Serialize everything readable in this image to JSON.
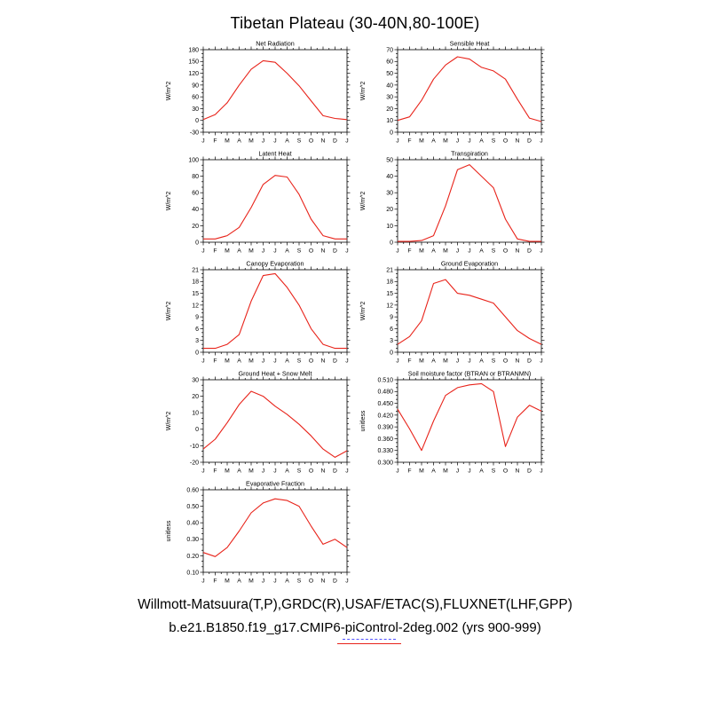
{
  "page_title": "Tibetan Plateau (30-40N,80-100E)",
  "line_color": "#e8231a",
  "footer": {
    "line1": "Willmott-Matsuura(T,P),GRDC(R),USAF/ETAC(S),FLUXNET(LHF,GPP)",
    "line2": "b.e21.B1850.f19_g17.CMIP6-piControl-2deg.002 (yrs 900-999)",
    "legend": [
      {
        "style": "dashed",
        "color": "#5050ff"
      },
      {
        "style": "solid",
        "color": "#e8231a"
      }
    ]
  },
  "chart_data": [
    {
      "type": "line",
      "title": "Net Radiation",
      "ylabel": "W/m^2",
      "ylim": [
        -30,
        180
      ],
      "ytick_step": 30,
      "ydecimals": 0,
      "categories": [
        "J",
        "F",
        "M",
        "A",
        "M",
        "J",
        "J",
        "A",
        "S",
        "O",
        "N",
        "D",
        "J"
      ],
      "values": [
        2,
        15,
        45,
        90,
        130,
        152,
        148,
        120,
        88,
        50,
        12,
        5,
        2
      ]
    },
    {
      "type": "line",
      "title": "Sensible Heat",
      "ylabel": "W/m^2",
      "ylim": [
        0,
        70
      ],
      "ytick_step": 10,
      "ydecimals": 0,
      "categories": [
        "J",
        "F",
        "M",
        "A",
        "M",
        "J",
        "J",
        "A",
        "S",
        "O",
        "N",
        "D",
        "J"
      ],
      "values": [
        10,
        13,
        27,
        45,
        57,
        64,
        62,
        55,
        52,
        45,
        28,
        12,
        9
      ]
    },
    {
      "type": "line",
      "title": "Latent Heat",
      "ylabel": "W/m^2",
      "ylim": [
        0,
        100
      ],
      "ytick_step": 20,
      "ydecimals": 0,
      "categories": [
        "J",
        "F",
        "M",
        "A",
        "M",
        "J",
        "J",
        "A",
        "S",
        "O",
        "N",
        "D",
        "J"
      ],
      "values": [
        4,
        4,
        8,
        18,
        42,
        70,
        81,
        79,
        58,
        28,
        8,
        4,
        4
      ]
    },
    {
      "type": "line",
      "title": "Transpiration",
      "ylabel": "W/m^2",
      "ylim": [
        0,
        50
      ],
      "ytick_step": 10,
      "ydecimals": 0,
      "categories": [
        "J",
        "F",
        "M",
        "A",
        "M",
        "J",
        "J",
        "A",
        "S",
        "O",
        "N",
        "D",
        "J"
      ],
      "values": [
        0.5,
        0.5,
        1,
        4,
        22,
        44,
        47,
        40,
        33,
        14,
        2,
        0.5,
        0.5
      ]
    },
    {
      "type": "line",
      "title": "Canopy Evaporation",
      "ylabel": "W/m^2",
      "ylim": [
        0,
        21
      ],
      "ytick_step": 3,
      "ydecimals": 0,
      "categories": [
        "J",
        "F",
        "M",
        "A",
        "M",
        "J",
        "J",
        "A",
        "S",
        "O",
        "N",
        "D",
        "J"
      ],
      "values": [
        1,
        1,
        2,
        4.5,
        13,
        19.5,
        20,
        16.5,
        12,
        6,
        2,
        1,
        1
      ]
    },
    {
      "type": "line",
      "title": "Ground Evaporation",
      "ylabel": "W/m^2",
      "ylim": [
        0,
        21
      ],
      "ytick_step": 3,
      "ydecimals": 0,
      "categories": [
        "J",
        "F",
        "M",
        "A",
        "M",
        "J",
        "J",
        "A",
        "S",
        "O",
        "N",
        "D",
        "J"
      ],
      "values": [
        2,
        4,
        8,
        17.5,
        18.5,
        15,
        14.5,
        13.5,
        12.5,
        9,
        5.5,
        3.5,
        2
      ]
    },
    {
      "type": "line",
      "title": "Ground Heat + Snow Melt",
      "ylabel": "W/m^2",
      "ylim": [
        -20,
        30
      ],
      "ytick_step": 10,
      "ydecimals": 0,
      "categories": [
        "J",
        "F",
        "M",
        "A",
        "M",
        "J",
        "J",
        "A",
        "S",
        "O",
        "N",
        "D",
        "J"
      ],
      "values": [
        -12,
        -6,
        4,
        15,
        23,
        20,
        14,
        9,
        3,
        -4,
        -12,
        -17,
        -13
      ]
    },
    {
      "type": "line",
      "title": "Soil moisture factor (BTRAN or BTRANMN)",
      "ylabel": "unitless",
      "ylim": [
        0.3,
        0.51
      ],
      "ytick_step": 0.03,
      "ydecimals": 3,
      "categories": [
        "J",
        "F",
        "M",
        "A",
        "M",
        "J",
        "J",
        "A",
        "S",
        "O",
        "N",
        "D",
        "J"
      ],
      "values": [
        0.435,
        0.385,
        0.33,
        0.405,
        0.47,
        0.49,
        0.497,
        0.5,
        0.48,
        0.34,
        0.415,
        0.445,
        0.43
      ]
    },
    {
      "type": "line",
      "title": "Evaporative Fraction",
      "ylabel": "unitless",
      "ylim": [
        0.1,
        0.6
      ],
      "ytick_step": 0.1,
      "ydecimals": 2,
      "categories": [
        "J",
        "F",
        "M",
        "A",
        "M",
        "J",
        "J",
        "A",
        "S",
        "O",
        "N",
        "D",
        "J"
      ],
      "values": [
        0.22,
        0.195,
        0.25,
        0.35,
        0.46,
        0.52,
        0.545,
        0.535,
        0.5,
        0.38,
        0.27,
        0.3,
        0.25
      ]
    }
  ]
}
